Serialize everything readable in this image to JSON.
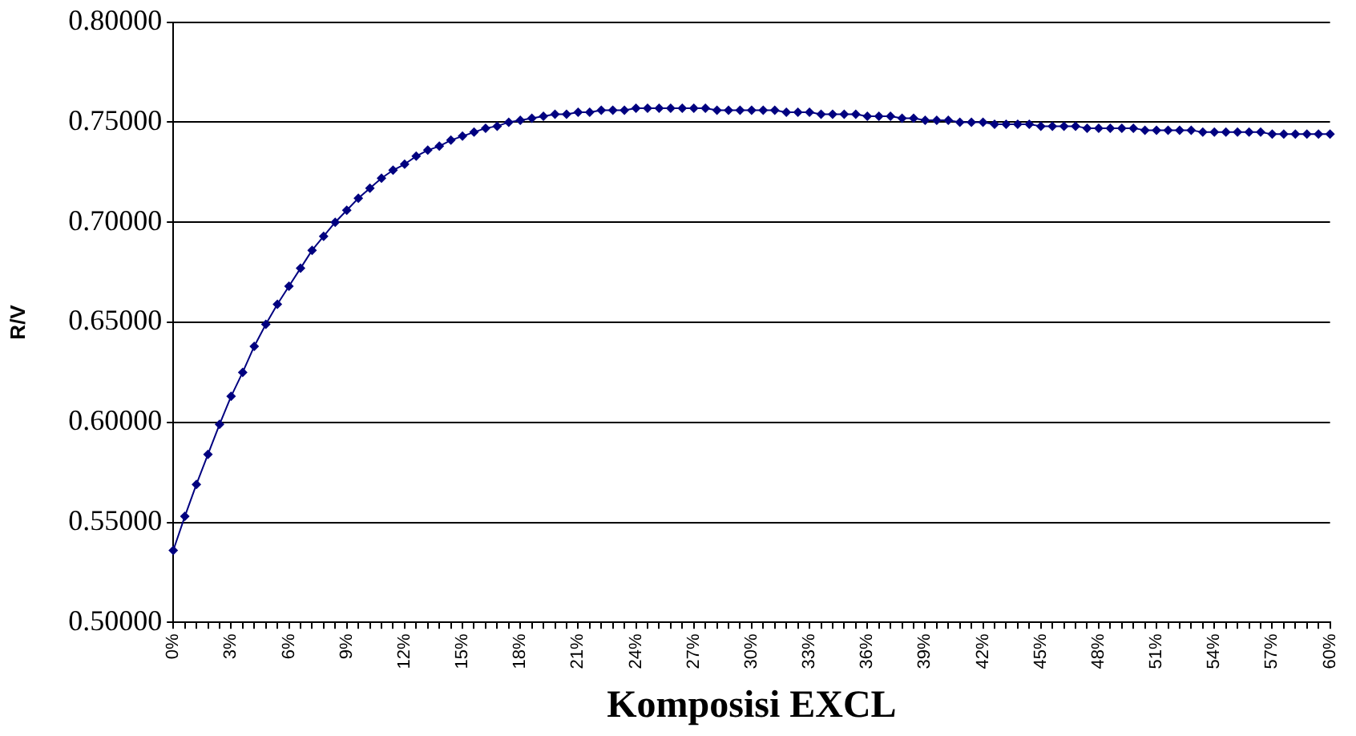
{
  "chart_data": {
    "type": "line",
    "xlabel": "Komposisi EXCL",
    "ylabel": "R/V",
    "categories": [
      "0%",
      null,
      null,
      null,
      null,
      "3%",
      null,
      null,
      null,
      null,
      "6%",
      null,
      null,
      null,
      null,
      "9%",
      null,
      null,
      null,
      null,
      "12%",
      null,
      null,
      null,
      null,
      "15%",
      null,
      null,
      null,
      null,
      "18%",
      null,
      null,
      null,
      null,
      "21%",
      null,
      null,
      null,
      null,
      "24%",
      null,
      null,
      null,
      null,
      "27%",
      null,
      null,
      null,
      null,
      "30%",
      null,
      null,
      null,
      null,
      "33%",
      null,
      null,
      null,
      null,
      "36%",
      null,
      null,
      null,
      null,
      "39%",
      null,
      null,
      null,
      null,
      "42%",
      null,
      null,
      null,
      null,
      "45%",
      null,
      null,
      null,
      null,
      "48%",
      null,
      null,
      null,
      null,
      "51%",
      null,
      null,
      null,
      null,
      "54%",
      null,
      null,
      null,
      null,
      "57%",
      null,
      null,
      null,
      null,
      "60%"
    ],
    "series": [
      {
        "color": "#000080",
        "values": [
          0.536,
          0.553,
          0.569,
          0.584,
          0.599,
          0.613,
          0.625,
          0.638,
          0.649,
          0.659,
          0.668,
          0.677,
          0.686,
          0.693,
          0.7,
          0.706,
          0.712,
          0.717,
          0.722,
          0.726,
          0.729,
          0.733,
          0.736,
          0.738,
          0.741,
          0.743,
          0.745,
          0.747,
          0.748,
          0.75,
          0.751,
          0.752,
          0.753,
          0.754,
          0.754,
          0.755,
          0.755,
          0.756,
          0.756,
          0.756,
          0.757,
          0.757,
          0.757,
          0.757,
          0.757,
          0.757,
          0.757,
          0.756,
          0.756,
          0.756,
          0.756,
          0.756,
          0.756,
          0.755,
          0.755,
          0.755,
          0.754,
          0.754,
          0.754,
          0.754,
          0.753,
          0.753,
          0.753,
          0.752,
          0.752,
          0.751,
          0.751,
          0.751,
          0.75,
          0.75,
          0.75,
          0.749,
          0.749,
          0.749,
          0.749,
          0.748,
          0.748,
          0.748,
          0.748,
          0.747,
          0.747,
          0.747,
          0.747,
          0.747,
          0.746,
          0.746,
          0.746,
          0.746,
          0.746,
          0.745,
          0.745,
          0.745,
          0.745,
          0.745,
          0.745,
          0.744,
          0.744,
          0.744,
          0.744,
          0.744,
          0.744
        ]
      }
    ],
    "ylim": [
      0.5,
      0.8
    ],
    "yticks": [
      {
        "value": 0.5,
        "label": "0.50000"
      },
      {
        "value": 0.55,
        "label": "0.55000"
      },
      {
        "value": 0.6,
        "label": "0.60000"
      },
      {
        "value": 0.65,
        "label": "0.65000"
      },
      {
        "value": 0.7,
        "label": "0.70000"
      },
      {
        "value": 0.75,
        "label": "0.75000"
      },
      {
        "value": 0.8,
        "label": "0.80000"
      }
    ],
    "grid": "y",
    "legend": false,
    "marker": "diamond",
    "line_style": "solid"
  }
}
